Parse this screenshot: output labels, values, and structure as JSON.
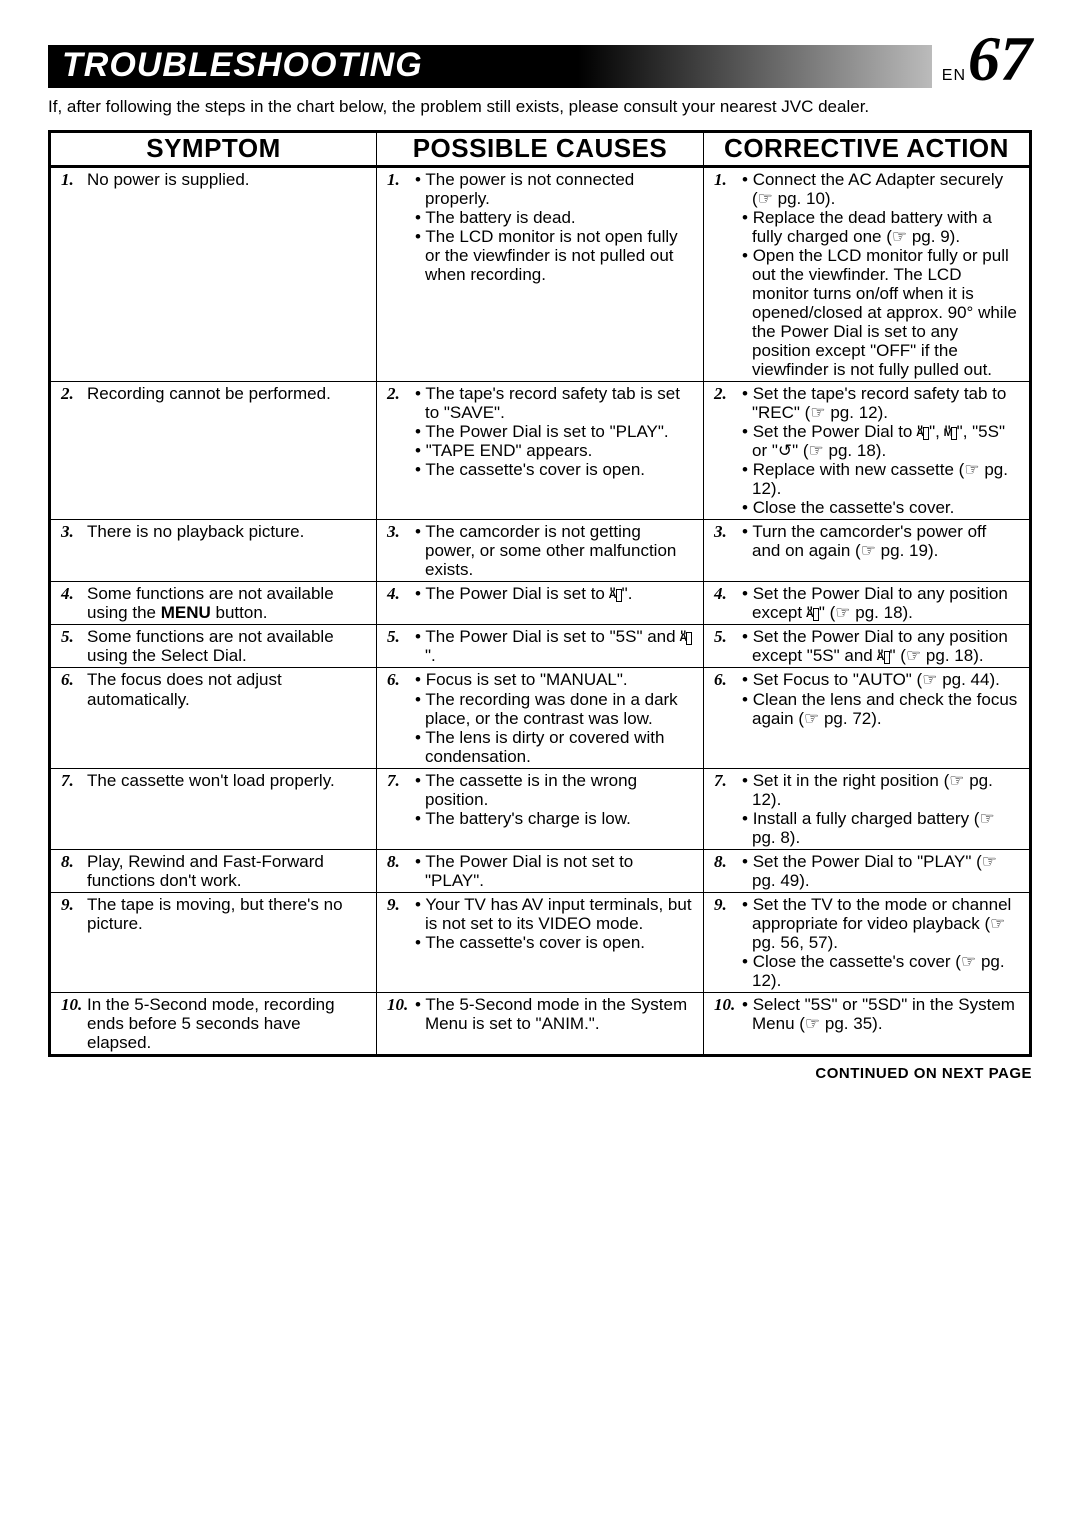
{
  "header": {
    "title": "TROUBLESHOOTING",
    "lang": "EN",
    "page_number": "67"
  },
  "intro": "If, after following the steps in the chart below, the problem still exists, please consult your nearest JVC dealer.",
  "columns": [
    "SYMPTOM",
    "POSSIBLE CAUSES",
    "CORRECTIVE ACTION"
  ],
  "rows": [
    {
      "n": "1.",
      "symptom": "No power is supplied.",
      "causes": [
        "The power is not connected properly.",
        "The battery is dead.",
        "The LCD monitor is not open fully or the viewfinder is not pulled out when recording."
      ],
      "actions": [
        "Connect the AC Adapter securely (☞ pg. 10).",
        "Replace the dead battery with a fully charged one (☞ pg. 9).",
        "Open the LCD monitor fully or pull out the viewfinder. The LCD monitor turns on/off when it is opened/closed at approx. 90° while the Power Dial is set to any position except \"OFF\" if the viewfinder is not fully pulled out."
      ]
    },
    {
      "n": "2.",
      "symptom": "Recording cannot be performed.",
      "causes": [
        "The tape's record safety tab is set to \"SAVE\".",
        "The Power Dial is set to \"PLAY\".",
        "\"TAPE END\" appears.",
        "The cassette's cover is open."
      ],
      "actions_html": [
        "Set the tape's record safety tab to \"REC\" (<span class=\"hand\">☞</span> pg. 12).",
        "Set the Power Dial to \"<span class=\"icon-box\">A</span>\", \"<span class=\"icon-box\">M</span>\", \"5S\" or \"<span class=\"hand\">↺</span>\" (<span class=\"hand\">☞</span> pg. 18).",
        "Replace with new cassette (<span class=\"hand\">☞</span> pg. 12).",
        "Close the cassette's cover."
      ]
    },
    {
      "n": "3.",
      "symptom": "There is no playback picture.",
      "causes": [
        "The camcorder is not getting power, or some other malfunction exists."
      ],
      "actions": [
        "Turn the camcorder's power off and on again (☞ pg. 19)."
      ]
    },
    {
      "n": "4.",
      "symptom_html": "Some functions are not available using the <b>MENU</b> button.",
      "causes_html": [
        "The Power Dial is set to \"<span class=\"icon-box\">A</span>\"."
      ],
      "actions_html": [
        "Set the Power Dial to any position except \"<span class=\"icon-box\">A</span>\" (<span class=\"hand\">☞</span> pg. 18)."
      ]
    },
    {
      "n": "5.",
      "symptom": "Some functions are not available using the Select Dial.",
      "causes_html": [
        "The Power Dial is set to \"5S\" and \"<span class=\"icon-box\">A</span>\"."
      ],
      "actions_html": [
        "Set the Power Dial to any position except \"5S\" and \"<span class=\"icon-box\">A</span>\" (<span class=\"hand\">☞</span> pg. 18)."
      ]
    },
    {
      "n": "6.",
      "symptom": "The focus does not adjust automatically.",
      "causes": [
        "Focus is set to \"MANUAL\".",
        "The recording was done in a dark place, or the contrast was low.",
        "The lens is dirty or covered with condensation."
      ],
      "actions": [
        "Set Focus to \"AUTO\" (☞ pg. 44).",
        "Clean the lens and check the focus again (☞ pg. 72)."
      ]
    },
    {
      "n": "7.",
      "symptom": "The cassette won't load properly.",
      "causes": [
        "The cassette is in the wrong position.",
        "The battery's charge is low."
      ],
      "actions": [
        "Set it in the right position (☞ pg. 12).",
        "Install a fully charged battery (☞ pg. 8)."
      ]
    },
    {
      "n": "8.",
      "symptom": "Play, Rewind and Fast-Forward functions don't work.",
      "causes": [
        "The Power Dial is not set to \"PLAY\"."
      ],
      "actions": [
        "Set the Power Dial to \"PLAY\" (☞ pg. 49)."
      ]
    },
    {
      "n": "9.",
      "symptom": "The tape is moving, but there's no picture.",
      "causes": [
        "Your TV has AV input terminals, but is not set to its VIDEO mode.",
        "The cassette's cover is open."
      ],
      "actions": [
        "Set the TV to the mode or channel appropriate for video playback (☞ pg. 56, 57).",
        "Close the cassette's cover (☞ pg. 12)."
      ]
    },
    {
      "n": "10.",
      "symptom": "In the 5-Second mode, recording ends before 5 seconds have elapsed.",
      "causes": [
        "The 5-Second mode in the System Menu is set to \"ANIM.\"."
      ],
      "actions": [
        "Select \"5S\" or \"5SD\" in the System Menu (☞ pg. 35)."
      ]
    }
  ],
  "footer": "CONTINUED ON NEXT PAGE"
}
